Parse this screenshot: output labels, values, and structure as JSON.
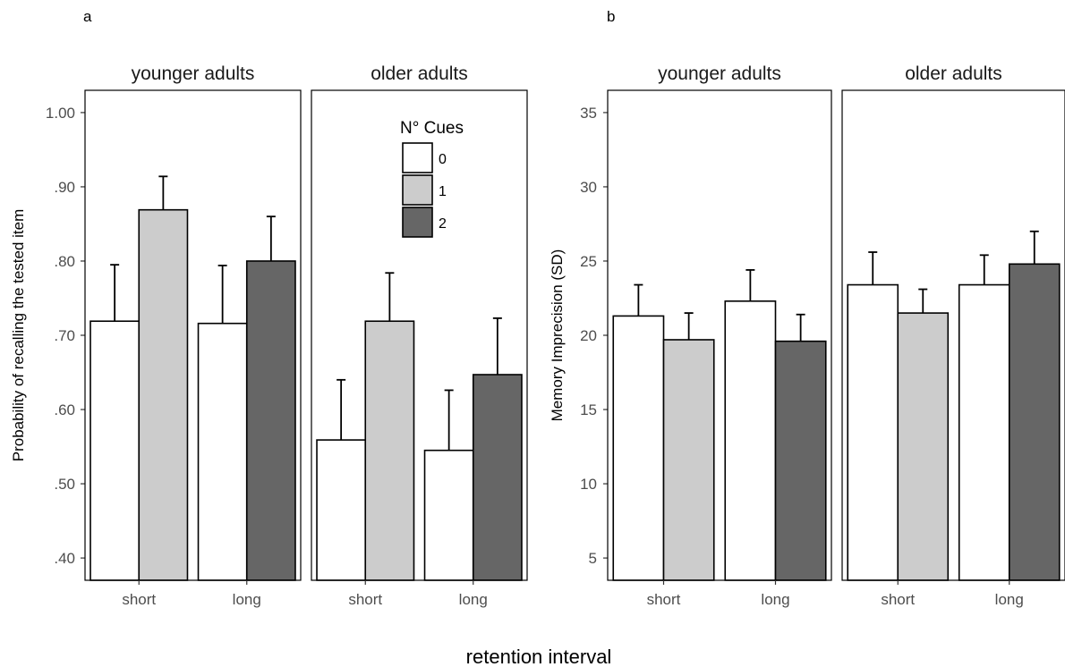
{
  "x_axis_label": "retention interval",
  "legend": {
    "title": "N° Cues",
    "position": "inside older adults facet of panel a, top",
    "items": [
      {
        "label": "0",
        "color": "#ffffff"
      },
      {
        "label": "1",
        "color": "#cccccc"
      },
      {
        "label": "2",
        "color": "#666666"
      }
    ]
  },
  "chart_data": [
    {
      "type": "bar",
      "panel_label": "a",
      "ylabel": "Probability of recalling the tested item",
      "ylim": [
        0.37,
        1.03
      ],
      "yticks": [
        0.4,
        0.5,
        0.6,
        0.7,
        0.8,
        0.9,
        1.0
      ],
      "ytick_labels": [
        ".40",
        ".50",
        ".60",
        ".70",
        ".80",
        ".90",
        "1.00"
      ],
      "categories": [
        "short",
        "long"
      ],
      "grid": false,
      "facets": [
        {
          "title": "younger adults",
          "bars": [
            {
              "category": "short",
              "cues": "0",
              "value": 0.719,
              "error_upper": 0.795
            },
            {
              "category": "short",
              "cues": "1",
              "value": 0.869,
              "error_upper": 0.914
            },
            {
              "category": "long",
              "cues": "0",
              "value": 0.716,
              "error_upper": 0.794
            },
            {
              "category": "long",
              "cues": "2",
              "value": 0.8,
              "error_upper": 0.86
            }
          ]
        },
        {
          "title": "older adults",
          "bars": [
            {
              "category": "short",
              "cues": "0",
              "value": 0.559,
              "error_upper": 0.64
            },
            {
              "category": "short",
              "cues": "1",
              "value": 0.719,
              "error_upper": 0.784
            },
            {
              "category": "long",
              "cues": "0",
              "value": 0.545,
              "error_upper": 0.626
            },
            {
              "category": "long",
              "cues": "2",
              "value": 0.647,
              "error_upper": 0.723
            }
          ]
        }
      ]
    },
    {
      "type": "bar",
      "panel_label": "b",
      "ylabel": "Memory Imprecision (SD)",
      "ylim": [
        3.5,
        36.5
      ],
      "yticks": [
        5,
        10,
        15,
        20,
        25,
        30,
        35
      ],
      "ytick_labels": [
        "5",
        "10",
        "15",
        "20",
        "25",
        "30",
        "35"
      ],
      "categories": [
        "short",
        "long"
      ],
      "grid": false,
      "facets": [
        {
          "title": "younger adults",
          "bars": [
            {
              "category": "short",
              "cues": "0",
              "value": 21.3,
              "error_upper": 23.4
            },
            {
              "category": "short",
              "cues": "1",
              "value": 19.7,
              "error_upper": 21.5
            },
            {
              "category": "long",
              "cues": "0",
              "value": 22.3,
              "error_upper": 24.4
            },
            {
              "category": "long",
              "cues": "2",
              "value": 19.6,
              "error_upper": 21.4
            }
          ]
        },
        {
          "title": "older adults",
          "bars": [
            {
              "category": "short",
              "cues": "0",
              "value": 23.4,
              "error_upper": 25.6
            },
            {
              "category": "short",
              "cues": "1",
              "value": 21.5,
              "error_upper": 23.1
            },
            {
              "category": "long",
              "cues": "0",
              "value": 23.4,
              "error_upper": 25.4
            },
            {
              "category": "long",
              "cues": "2",
              "value": 24.8,
              "error_upper": 27.0
            }
          ]
        }
      ]
    }
  ]
}
